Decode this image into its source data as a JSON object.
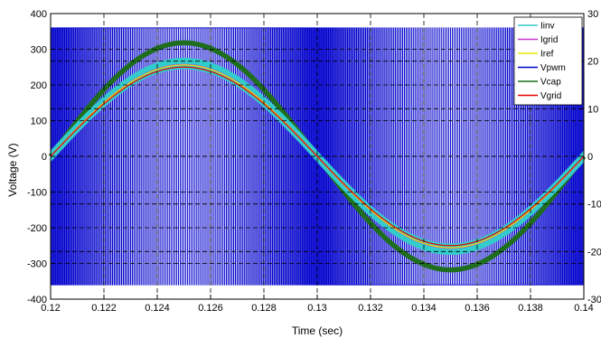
{
  "chart_data": {
    "type": "line",
    "xlabel": "Time (sec)",
    "ylabel": "Voltage (V)",
    "xlim": [
      0.12,
      0.14
    ],
    "ylim": [
      -400,
      400
    ],
    "y2lim": [
      -30,
      30
    ],
    "grid": "dashed",
    "legend_position": "top-right",
    "x_ticks": [
      "0.12",
      "0.122",
      "0.124",
      "0.126",
      "0.128",
      "0.13",
      "0.132",
      "0.134",
      "0.136",
      "0.138",
      "0.14"
    ],
    "y_ticks": [
      "400",
      "300",
      "200",
      "100",
      "0",
      "-100",
      "-200",
      "-300",
      "-400"
    ],
    "y2_ticks": [
      "30",
      "20",
      "10",
      "0",
      "-10",
      "-20",
      "-30"
    ],
    "frequency_hz": 50,
    "series": [
      {
        "name": "Iinv",
        "color": "#33cccc",
        "kind": "current",
        "amplitude": 19.5,
        "ripple": 1.2
      },
      {
        "name": "Igrid",
        "color": "#cc33cc",
        "kind": "current",
        "amplitude": 19.3
      },
      {
        "name": "Iref",
        "color": "#e6e600",
        "kind": "current",
        "amplitude": 19.2
      },
      {
        "name": "Vpwm",
        "color": "#0000cc",
        "kind": "pwm",
        "amplitude": 360
      },
      {
        "name": "Vcap",
        "color": "#1e6e1e",
        "kind": "voltage",
        "amplitude": 318
      },
      {
        "name": "Vgrid",
        "color": "#e60000",
        "kind": "voltage",
        "amplitude": 250
      }
    ]
  }
}
